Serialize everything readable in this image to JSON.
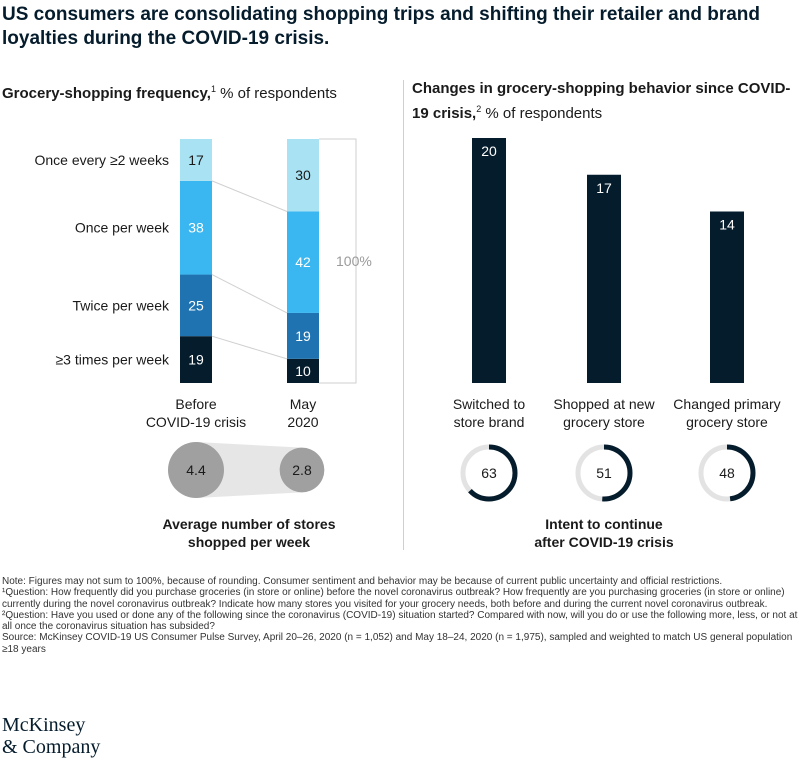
{
  "title": "US consumers are consolidating shopping trips and shifting their retailer and brand loyalties during the COVID-19 crisis.",
  "left_heading": {
    "bold": "Grocery-shopping frequency,",
    "sup": "1",
    "rest": " % of respondents"
  },
  "right_heading": {
    "bold": "Changes in grocery-shopping behavior since COVID-19 crisis,",
    "sup": "2",
    "rest": " % of respondents"
  },
  "chart_data": [
    {
      "type": "bar",
      "stacked": true,
      "categories": [
        "Before COVID-19 crisis",
        "May 2020"
      ],
      "series": [
        {
          "name": "≥3 times per week",
          "values": [
            19,
            10
          ],
          "color": "#051c2c"
        },
        {
          "name": "Twice per week",
          "values": [
            25,
            19
          ],
          "color": "#1f73b1"
        },
        {
          "name": "Once per week",
          "values": [
            38,
            42
          ],
          "color": "#3ab6f0"
        },
        {
          "name": "Once every ≥2 weeks",
          "values": [
            17,
            30
          ],
          "color": "#a9e2f3"
        }
      ],
      "total_label": "100%",
      "stores": {
        "label": "Average number of stores shopped per week",
        "values": [
          4.4,
          2.8
        ]
      }
    },
    {
      "type": "bar",
      "categories": [
        "Switched to store brand",
        "Shopped at new grocery store",
        "Changed primary grocery store"
      ],
      "values": [
        20,
        17,
        14
      ],
      "color": "#051c2c",
      "intent": {
        "label": "Intent to continue after COVID-19 crisis",
        "values": [
          63,
          51,
          48
        ]
      }
    }
  ],
  "notes": [
    "Note: Figures may not sum to 100%, because of rounding. Consumer sentiment and behavior may be because of current public uncertainty and official restrictions.",
    "¹Question: How frequently did you purchase groceries (in store or online) before the novel coronavirus outbreak? How frequently are you purchasing groceries (in store or online) currently during the novel coronavirus outbreak? Indicate how many stores you visited for your grocery needs, both before and during the current novel coronavirus outbreak.",
    "²Question: Have you used or done any of the following since the coronavirus (COVID-19) situation started? Compared with now, will you do or use the following more, less, or not at all once the coronavirus situation has subsided?",
    "Source: McKinsey COVID-19 US Consumer Pulse Survey, April 20–26, 2020 (n = 1,052) and May 18–24, 2020 (n = 1,975), sampled and weighted to match US general population ≥18 years"
  ],
  "logo": [
    "McKinsey",
    "& Company"
  ]
}
